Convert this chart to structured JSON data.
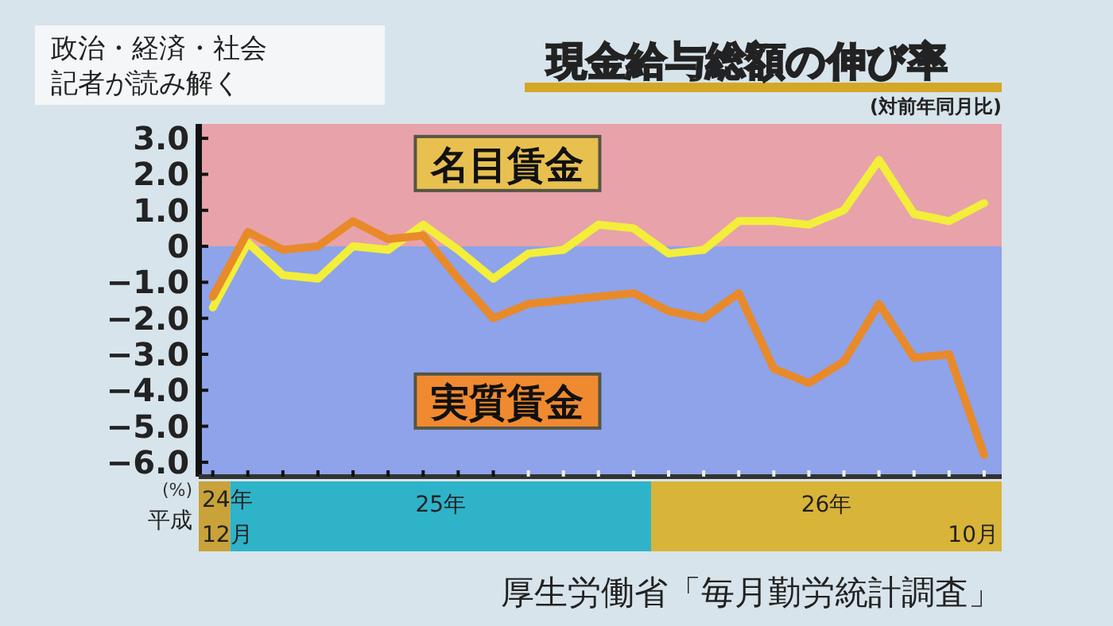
{
  "chart_data": {
    "type": "line",
    "title": "現金給与総額の伸び率",
    "subtitle": "(対前年同月比)",
    "ylabel": "(%)",
    "annotations": [
      "政治・経済・社会",
      "厚生労働省「毎月勤労統計調査」",
      "平成",
      "24年",
      "12月",
      "25年",
      "26年",
      "10月",
      "記者が読み解く"
    ],
    "categories": [
      null,
      null,
      null,
      null,
      null,
      null,
      null,
      null,
      null,
      null,
      null,
      null,
      null,
      null,
      null,
      null,
      null,
      null,
      null,
      null,
      null,
      null,
      null
    ],
    "series": [
      {
        "name": "名目賃金",
        "color": "#f2ee3a",
        "values": [
          -1.7,
          0.1,
          -0.8,
          -0.9,
          0.0,
          -0.1,
          0.6,
          -0.1,
          -0.9,
          -0.2,
          -0.1,
          0.6,
          0.5,
          -0.2,
          -0.1,
          0.7,
          0.7,
          0.6,
          1.0,
          2.4,
          0.9,
          0.7,
          1.2
        ]
      },
      {
        "name": "実質賃金",
        "color": "#e88a2a",
        "values": [
          -1.4,
          0.4,
          -0.1,
          0.0,
          0.7,
          0.2,
          0.3,
          -0.9,
          -2.0,
          -1.6,
          -1.5,
          -1.4,
          -1.3,
          -1.8,
          -2.0,
          -1.3,
          -3.4,
          -3.8,
          -3.2,
          -1.6,
          -3.1,
          -3.0,
          -5.8
        ]
      }
    ],
    "ylim": [
      -6.4,
      3.4
    ],
    "yticks": [
      {
        "value": 3,
        "label": "3.0"
      },
      {
        "value": 2,
        "label": "2.0"
      },
      {
        "value": 1,
        "label": "1.0"
      },
      0,
      {
        "value": -1,
        "label": "−1.0"
      },
      {
        "value": -2,
        "label": "−2.0"
      },
      {
        "value": -3,
        "label": "−3.0"
      },
      {
        "value": -4,
        "label": "−4.0"
      },
      {
        "value": -5,
        "label": "−5.0"
      },
      {
        "value": -6,
        "label": "−6.0"
      }
    ],
    "bands": [
      {
        "axis": "y",
        "from": 0,
        "to": 3.4,
        "color": "#e8a2aa"
      },
      {
        "axis": "y",
        "from": -6.4,
        "to": 0,
        "color": "#8ea3ea"
      }
    ],
    "grid": false,
    "marker": "none",
    "line_style": "solid"
  }
}
